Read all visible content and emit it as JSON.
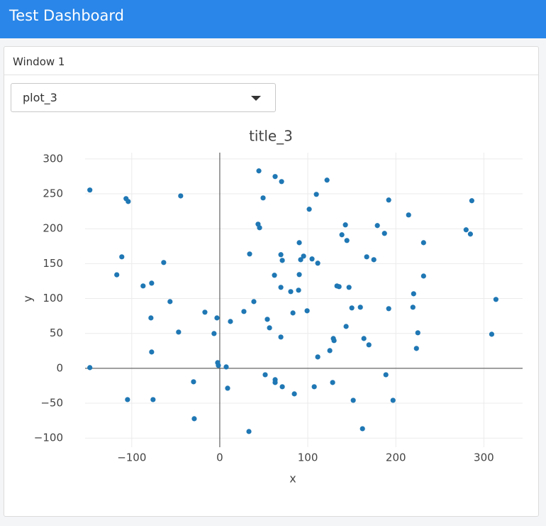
{
  "header": {
    "title": "Test Dashboard"
  },
  "window": {
    "title": "Window 1"
  },
  "dropdown": {
    "value": "plot_3"
  },
  "chart_data": {
    "type": "scatter",
    "title": "title_3",
    "x_label": "x",
    "y_label": "y",
    "color": "#1f77b4",
    "grid": true,
    "zeroline": true,
    "xlim": [
      -153,
      344
    ],
    "ylim": [
      -113,
      309
    ],
    "xticks": [
      {
        "value": -100,
        "label": "−100"
      },
      0,
      100,
      200,
      300
    ],
    "yticks": [
      {
        "value": -100,
        "label": "−100"
      },
      {
        "value": -50,
        "label": "−50"
      },
      0,
      50,
      100,
      150,
      200,
      250,
      300
    ],
    "x": [
      -147.6,
      -106.5,
      -104,
      -44.4,
      -111.3,
      -117,
      -87.1,
      -77.4,
      -63.7,
      -56.5,
      -78.2,
      -46.8,
      -16.9,
      -3.2,
      -6.5,
      -77.4,
      -147.6,
      -104.8,
      -75.8,
      -29.8,
      -29,
      -2.4,
      -1.6,
      7.3,
      8.9,
      12.1,
      27.4,
      38.7,
      33.9,
      44.4,
      62.9,
      70.2,
      49.2,
      43.5,
      45.2,
      62.1,
      69.4,
      71,
      69.4,
      54,
      56.5,
      69.4,
      51.6,
      62.9,
      62.9,
      71,
      33.1,
      84.7,
      80.6,
      83.1,
      89.5,
      90.3,
      90.3,
      91.9,
      95.2,
      101.6,
      109.7,
      104.8,
      111.3,
      99.2,
      111.3,
      107.3,
      121.8,
      138.7,
      142.7,
      144.4,
      133.1,
      135.5,
      146.8,
      150,
      143.5,
      129,
      129.8,
      125,
      128.2,
      151.6,
      159.7,
      162.1,
      163.7,
      169.4,
      166.9,
      175,
      179,
      187.1,
      191.9,
      191.9,
      188.7,
      196.8,
      214.5,
      231.5,
      231.5,
      220.2,
      219.4,
      225,
      223.4,
      279.8,
      284.7,
      286.3,
      308.9,
      313.7
    ],
    "values": [
      255.4,
      243.1,
      239,
      247,
      159.7,
      134,
      118,
      122,
      151.6,
      95.6,
      72.2,
      51.9,
      80.4,
      72.2,
      49.8,
      23.4,
      1,
      -44.8,
      -44.8,
      -19.3,
      -72.2,
      8.1,
      4.1,
      2,
      -28.5,
      67.1,
      81.4,
      95.6,
      163.8,
      282.8,
      274.7,
      267.5,
      244.1,
      206.5,
      201.4,
      133.3,
      162.8,
      154.6,
      116,
      70.2,
      58,
      44.8,
      -9.2,
      -16.3,
      -20.3,
      -26.4,
      -90.5,
      -36.6,
      109.9,
      79.3,
      111.9,
      134.3,
      180,
      155.6,
      160.7,
      227.9,
      249.2,
      156.7,
      150.6,
      82.4,
      16.3,
      -26.4,
      269.6,
      191.3,
      205.5,
      183.1,
      118,
      117,
      116,
      86.5,
      60,
      42.7,
      39.7,
      25.4,
      -20.3,
      -45.8,
      87.5,
      -86.5,
      42.7,
      33.6,
      159.7,
      155.6,
      204.5,
      193.3,
      241.1,
      85.5,
      -9.2,
      -45.8,
      219.7,
      180,
      132.2,
      106.8,
      87.5,
      50.9,
      28.5,
      198.4,
      192.3,
      240.1,
      48.8,
      98.7
    ]
  }
}
